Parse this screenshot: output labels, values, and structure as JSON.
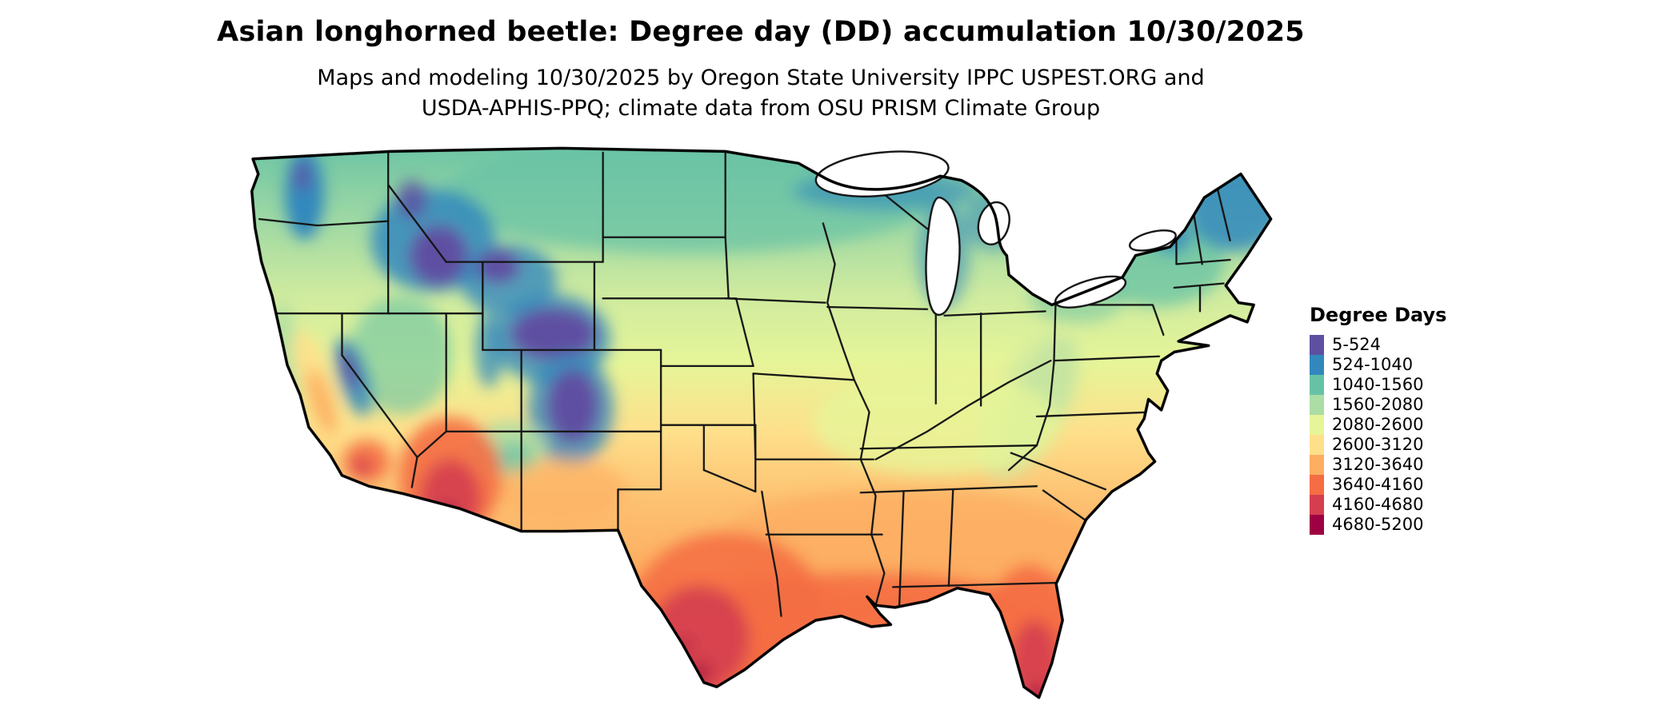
{
  "header": {
    "title": "Asian longhorned beetle: Degree day (DD) accumulation 10/30/2025",
    "subtitle_line1": "Maps and modeling 10/30/2025 by Oregon State University IPPC USPEST.ORG and",
    "subtitle_line2": "USDA-APHIS-PPQ; climate data from OSU PRISM Climate Group"
  },
  "legend": {
    "title": "Degree Days",
    "items": [
      {
        "label": "5-524",
        "color": "#5e4fa2"
      },
      {
        "label": "524-1040",
        "color": "#3288bd"
      },
      {
        "label": "1040-1560",
        "color": "#66c2a5"
      },
      {
        "label": "1560-2080",
        "color": "#abdda4"
      },
      {
        "label": "2080-2600",
        "color": "#e6f598"
      },
      {
        "label": "2600-3120",
        "color": "#fee08b"
      },
      {
        "label": "3120-3640",
        "color": "#fdae61"
      },
      {
        "label": "3640-4160",
        "color": "#f46d43"
      },
      {
        "label": "4160-4680",
        "color": "#d53e4f"
      },
      {
        "label": "4680-5200",
        "color": "#9e0142"
      }
    ]
  }
}
